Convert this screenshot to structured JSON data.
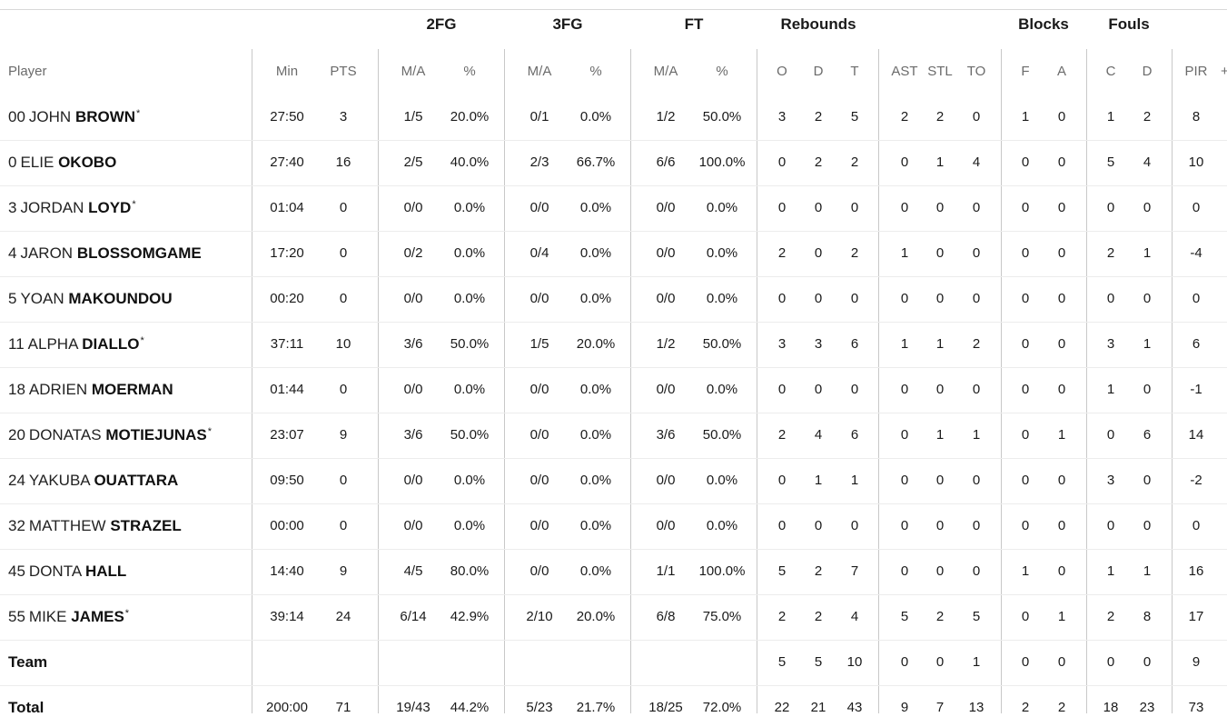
{
  "header": {
    "groups": {
      "fg2": "2FG",
      "fg3": "3FG",
      "ft": "FT",
      "rebounds": "Rebounds",
      "blocks": "Blocks",
      "fouls": "Fouls"
    },
    "columns": {
      "player": "Player",
      "min": "Min",
      "pts": "PTS",
      "fg2_ma": "M/A",
      "fg2_pct": "%",
      "fg3_ma": "M/A",
      "fg3_pct": "%",
      "ft_ma": "M/A",
      "ft_pct": "%",
      "reb_o": "O",
      "reb_d": "D",
      "reb_t": "T",
      "ast": "AST",
      "stl": "STL",
      "to": "TO",
      "blk_f": "F",
      "blk_a": "A",
      "foul_c": "C",
      "foul_d": "D",
      "pir": "PIR",
      "extra": "+"
    }
  },
  "players": [
    {
      "dorsal": "00",
      "first": "JOHN",
      "last": "BROWN",
      "star": "*",
      "min": "27:50",
      "pts": "3",
      "fg2_ma": "1/5",
      "fg2_pct": "20.0%",
      "fg3_ma": "0/1",
      "fg3_pct": "0.0%",
      "ft_ma": "1/2",
      "ft_pct": "50.0%",
      "reb_o": "3",
      "reb_d": "2",
      "reb_t": "5",
      "ast": "2",
      "stl": "2",
      "to": "0",
      "blk_f": "1",
      "blk_a": "0",
      "foul_c": "1",
      "foul_d": "2",
      "pir": "8"
    },
    {
      "dorsal": "0",
      "first": "ELIE",
      "last": "OKOBO",
      "star": "",
      "min": "27:40",
      "pts": "16",
      "fg2_ma": "2/5",
      "fg2_pct": "40.0%",
      "fg3_ma": "2/3",
      "fg3_pct": "66.7%",
      "ft_ma": "6/6",
      "ft_pct": "100.0%",
      "reb_o": "0",
      "reb_d": "2",
      "reb_t": "2",
      "ast": "0",
      "stl": "1",
      "to": "4",
      "blk_f": "0",
      "blk_a": "0",
      "foul_c": "5",
      "foul_d": "4",
      "pir": "10"
    },
    {
      "dorsal": "3",
      "first": "JORDAN",
      "last": "LOYD",
      "star": "*",
      "min": "01:04",
      "pts": "0",
      "fg2_ma": "0/0",
      "fg2_pct": "0.0%",
      "fg3_ma": "0/0",
      "fg3_pct": "0.0%",
      "ft_ma": "0/0",
      "ft_pct": "0.0%",
      "reb_o": "0",
      "reb_d": "0",
      "reb_t": "0",
      "ast": "0",
      "stl": "0",
      "to": "0",
      "blk_f": "0",
      "blk_a": "0",
      "foul_c": "0",
      "foul_d": "0",
      "pir": "0"
    },
    {
      "dorsal": "4",
      "first": "JARON",
      "last": "BLOSSOMGAME",
      "star": "",
      "min": "17:20",
      "pts": "0",
      "fg2_ma": "0/2",
      "fg2_pct": "0.0%",
      "fg3_ma": "0/4",
      "fg3_pct": "0.0%",
      "ft_ma": "0/0",
      "ft_pct": "0.0%",
      "reb_o": "2",
      "reb_d": "0",
      "reb_t": "2",
      "ast": "1",
      "stl": "0",
      "to": "0",
      "blk_f": "0",
      "blk_a": "0",
      "foul_c": "2",
      "foul_d": "1",
      "pir": "-4"
    },
    {
      "dorsal": "5",
      "first": "YOAN",
      "last": "MAKOUNDOU",
      "star": "",
      "min": "00:20",
      "pts": "0",
      "fg2_ma": "0/0",
      "fg2_pct": "0.0%",
      "fg3_ma": "0/0",
      "fg3_pct": "0.0%",
      "ft_ma": "0/0",
      "ft_pct": "0.0%",
      "reb_o": "0",
      "reb_d": "0",
      "reb_t": "0",
      "ast": "0",
      "stl": "0",
      "to": "0",
      "blk_f": "0",
      "blk_a": "0",
      "foul_c": "0",
      "foul_d": "0",
      "pir": "0"
    },
    {
      "dorsal": "11",
      "first": "ALPHA",
      "last": "DIALLO",
      "star": "*",
      "min": "37:11",
      "pts": "10",
      "fg2_ma": "3/6",
      "fg2_pct": "50.0%",
      "fg3_ma": "1/5",
      "fg3_pct": "20.0%",
      "ft_ma": "1/2",
      "ft_pct": "50.0%",
      "reb_o": "3",
      "reb_d": "3",
      "reb_t": "6",
      "ast": "1",
      "stl": "1",
      "to": "2",
      "blk_f": "0",
      "blk_a": "0",
      "foul_c": "3",
      "foul_d": "1",
      "pir": "6"
    },
    {
      "dorsal": "18",
      "first": "ADRIEN",
      "last": "MOERMAN",
      "star": "",
      "min": "01:44",
      "pts": "0",
      "fg2_ma": "0/0",
      "fg2_pct": "0.0%",
      "fg3_ma": "0/0",
      "fg3_pct": "0.0%",
      "ft_ma": "0/0",
      "ft_pct": "0.0%",
      "reb_o": "0",
      "reb_d": "0",
      "reb_t": "0",
      "ast": "0",
      "stl": "0",
      "to": "0",
      "blk_f": "0",
      "blk_a": "0",
      "foul_c": "1",
      "foul_d": "0",
      "pir": "-1"
    },
    {
      "dorsal": "20",
      "first": "DONATAS",
      "last": "MOTIEJUNAS",
      "star": "*",
      "min": "23:07",
      "pts": "9",
      "fg2_ma": "3/6",
      "fg2_pct": "50.0%",
      "fg3_ma": "0/0",
      "fg3_pct": "0.0%",
      "ft_ma": "3/6",
      "ft_pct": "50.0%",
      "reb_o": "2",
      "reb_d": "4",
      "reb_t": "6",
      "ast": "0",
      "stl": "1",
      "to": "1",
      "blk_f": "0",
      "blk_a": "1",
      "foul_c": "0",
      "foul_d": "6",
      "pir": "14"
    },
    {
      "dorsal": "24",
      "first": "YAKUBA",
      "last": "OUATTARA",
      "star": "",
      "min": "09:50",
      "pts": "0",
      "fg2_ma": "0/0",
      "fg2_pct": "0.0%",
      "fg3_ma": "0/0",
      "fg3_pct": "0.0%",
      "ft_ma": "0/0",
      "ft_pct": "0.0%",
      "reb_o": "0",
      "reb_d": "1",
      "reb_t": "1",
      "ast": "0",
      "stl": "0",
      "to": "0",
      "blk_f": "0",
      "blk_a": "0",
      "foul_c": "3",
      "foul_d": "0",
      "pir": "-2"
    },
    {
      "dorsal": "32",
      "first": "MATTHEW",
      "last": "STRAZEL",
      "star": "",
      "min": "00:00",
      "pts": "0",
      "fg2_ma": "0/0",
      "fg2_pct": "0.0%",
      "fg3_ma": "0/0",
      "fg3_pct": "0.0%",
      "ft_ma": "0/0",
      "ft_pct": "0.0%",
      "reb_o": "0",
      "reb_d": "0",
      "reb_t": "0",
      "ast": "0",
      "stl": "0",
      "to": "0",
      "blk_f": "0",
      "blk_a": "0",
      "foul_c": "0",
      "foul_d": "0",
      "pir": "0"
    },
    {
      "dorsal": "45",
      "first": "DONTA",
      "last": "HALL",
      "star": "",
      "min": "14:40",
      "pts": "9",
      "fg2_ma": "4/5",
      "fg2_pct": "80.0%",
      "fg3_ma": "0/0",
      "fg3_pct": "0.0%",
      "ft_ma": "1/1",
      "ft_pct": "100.0%",
      "reb_o": "5",
      "reb_d": "2",
      "reb_t": "7",
      "ast": "0",
      "stl": "0",
      "to": "0",
      "blk_f": "1",
      "blk_a": "0",
      "foul_c": "1",
      "foul_d": "1",
      "pir": "16"
    },
    {
      "dorsal": "55",
      "first": "MIKE",
      "last": "JAMES",
      "star": "*",
      "min": "39:14",
      "pts": "24",
      "fg2_ma": "6/14",
      "fg2_pct": "42.9%",
      "fg3_ma": "2/10",
      "fg3_pct": "20.0%",
      "ft_ma": "6/8",
      "ft_pct": "75.0%",
      "reb_o": "2",
      "reb_d": "2",
      "reb_t": "4",
      "ast": "5",
      "stl": "2",
      "to": "5",
      "blk_f": "0",
      "blk_a": "1",
      "foul_c": "2",
      "foul_d": "8",
      "pir": "17"
    }
  ],
  "team": {
    "label": "Team",
    "min": "",
    "pts": "",
    "fg2_ma": "",
    "fg2_pct": "",
    "fg3_ma": "",
    "fg3_pct": "",
    "ft_ma": "",
    "ft_pct": "",
    "reb_o": "5",
    "reb_d": "5",
    "reb_t": "10",
    "ast": "0",
    "stl": "0",
    "to": "1",
    "blk_f": "0",
    "blk_a": "0",
    "foul_c": "0",
    "foul_d": "0",
    "pir": "9"
  },
  "total": {
    "label": "Total",
    "min": "200:00",
    "pts": "71",
    "fg2_ma": "19/43",
    "fg2_pct": "44.2%",
    "fg3_ma": "5/23",
    "fg3_pct": "21.7%",
    "ft_ma": "18/25",
    "ft_pct": "72.0%",
    "reb_o": "22",
    "reb_d": "21",
    "reb_t": "43",
    "ast": "9",
    "stl": "7",
    "to": "13",
    "blk_f": "2",
    "blk_a": "2",
    "foul_c": "18",
    "foul_d": "23",
    "pir": "73"
  }
}
